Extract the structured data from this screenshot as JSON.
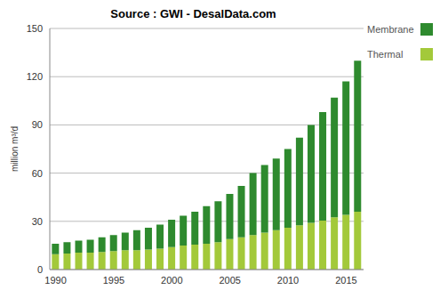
{
  "chart_data": {
    "type": "bar",
    "title": "Source : GWI - DesalData.com",
    "y_label": "million m³/d",
    "categories": [
      "1990",
      null,
      null,
      null,
      null,
      "1995",
      null,
      null,
      null,
      null,
      "2000",
      null,
      null,
      null,
      null,
      "2005",
      null,
      null,
      null,
      null,
      "2010",
      null,
      null,
      null,
      null,
      "2015",
      null
    ],
    "series": [
      {
        "name": "Thermal",
        "color": "#a3c93a",
        "values": [
          9.5,
          10,
          10.5,
          10.5,
          11,
          11.5,
          12,
          12,
          12.5,
          13,
          14,
          15,
          15.5,
          16,
          17,
          19,
          20,
          21.5,
          23,
          24.5,
          26,
          27.5,
          29,
          30.5,
          32.5,
          34,
          36
        ]
      },
      {
        "name": "Membrane",
        "color": "#2e8a2e",
        "values": [
          6.5,
          7,
          7.5,
          8,
          9,
          10,
          11,
          12.5,
          13.5,
          15,
          17,
          18.5,
          20.5,
          23.5,
          25.5,
          28,
          32,
          38.5,
          42,
          44.5,
          49,
          54.5,
          61,
          67.5,
          74.5,
          83,
          94
        ]
      }
    ],
    "stacked": true,
    "ylim": [
      0,
      150
    ],
    "yticks": [
      0,
      30,
      60,
      90,
      120,
      150
    ],
    "grid": true,
    "legend": "top-right"
  }
}
